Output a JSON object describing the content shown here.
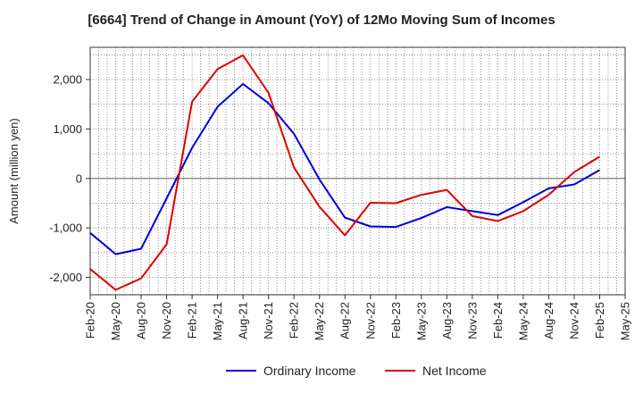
{
  "chart_data": {
    "type": "line",
    "title": "[6664]  Trend of Change in Amount (YoY) of 12Mo Moving Sum of Incomes",
    "ylabel": "Amount (million yen)",
    "xlabel": "",
    "ylim": [
      -2350,
      2650
    ],
    "y_ticks": [
      -2000,
      -1000,
      0,
      1000,
      2000
    ],
    "y_tick_labels": [
      "-2,000",
      "-1,000",
      "0",
      "1,000",
      "2,000"
    ],
    "x_tick_labels": [
      "Feb-20",
      "May-20",
      "Aug-20",
      "Nov-20",
      "Feb-21",
      "May-21",
      "Aug-21",
      "Nov-21",
      "Feb-22",
      "May-22",
      "Aug-22",
      "Nov-22",
      "Feb-23",
      "May-23",
      "Aug-23",
      "Nov-23",
      "Feb-24",
      "May-24",
      "Aug-24",
      "Nov-24",
      "Feb-25",
      "May-25"
    ],
    "grid": true,
    "legend_position": "bottom",
    "series": [
      {
        "name": "Ordinary Income",
        "color": "#0000dd",
        "values": [
          -1100,
          -1530,
          -1420,
          -400,
          620,
          1450,
          1910,
          1520,
          900,
          -20,
          -790,
          -970,
          -980,
          -800,
          -580,
          -660,
          -740,
          -480,
          -200,
          -120,
          170
        ]
      },
      {
        "name": "Net Income",
        "color": "#dd0000",
        "values": [
          -1830,
          -2250,
          -2020,
          -1330,
          1550,
          2210,
          2490,
          1730,
          220,
          -570,
          -1150,
          -490,
          -500,
          -330,
          -230,
          -760,
          -860,
          -660,
          -330,
          130,
          440
        ]
      }
    ]
  }
}
